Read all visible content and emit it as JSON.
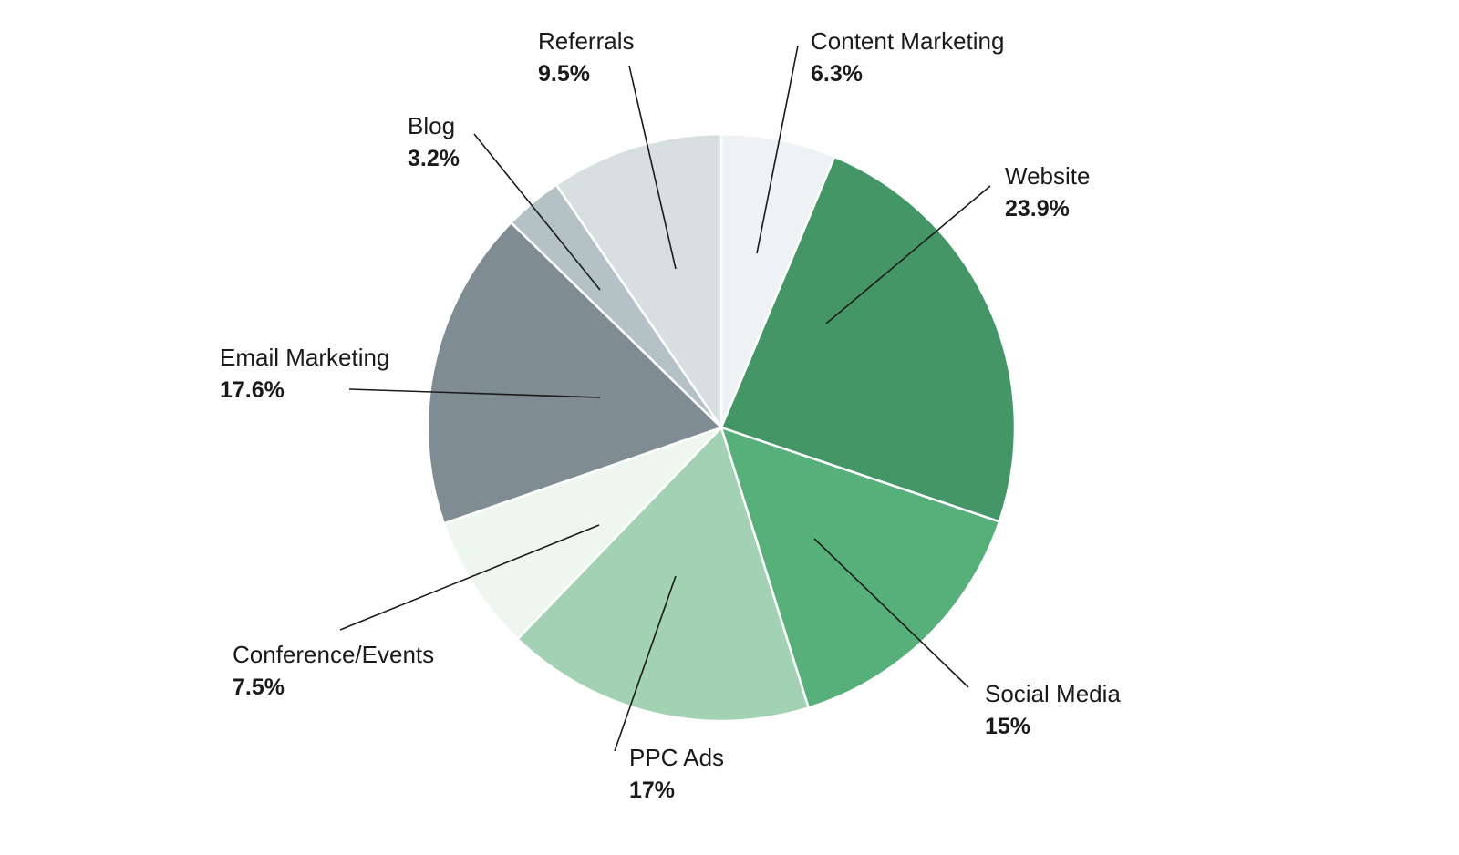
{
  "chart_data": {
    "type": "pie",
    "title": "",
    "start_angle_deg": 0,
    "direction": "clockwise",
    "slices": [
      {
        "label": "Content Marketing",
        "value": 6.3,
        "value_label": "6.3%",
        "color": "#EEF2F4"
      },
      {
        "label": "Website",
        "value": 23.9,
        "value_label": "23.9%",
        "color": "#459667"
      },
      {
        "label": "Social Media",
        "value": 15,
        "value_label": "15%",
        "color": "#57B07A"
      },
      {
        "label": "PPC Ads",
        "value": 17,
        "value_label": "17%",
        "color": "#A2D2B3"
      },
      {
        "label": "Conference/Events",
        "value": 7.5,
        "value_label": "7.5%",
        "color": "#EDF7EF"
      },
      {
        "label": "Email Marketing",
        "value": 17.6,
        "value_label": "17.6%",
        "color": "#7F8C93"
      },
      {
        "label": "Blog",
        "value": 3.2,
        "value_label": "3.2%",
        "color": "#B4C1C5"
      },
      {
        "label": "Referrals",
        "value": 9.5,
        "value_label": "9.5%",
        "color": "#D7DFE1"
      }
    ]
  }
}
